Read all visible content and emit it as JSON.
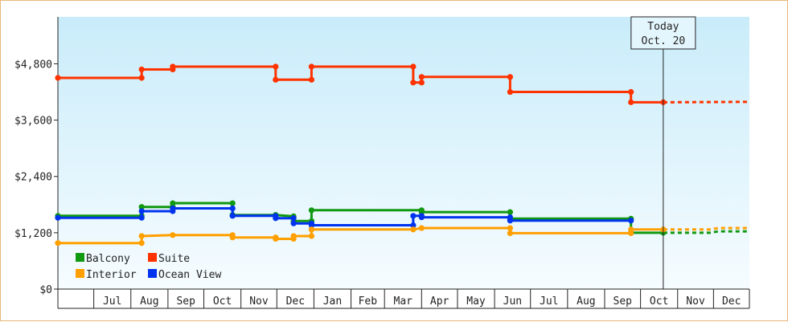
{
  "chart_data": {
    "type": "line",
    "title": "",
    "xlabel": "",
    "ylabel": "",
    "ylim": [
      0,
      5800
    ],
    "y_ticks": [
      {
        "value": 0,
        "label": "$0"
      },
      {
        "value": 1200,
        "label": "$1,200"
      },
      {
        "value": 2400,
        "label": "$2,400"
      },
      {
        "value": 3600,
        "label": "$3,600"
      },
      {
        "value": 4800,
        "label": "$4,800"
      }
    ],
    "x_range": [
      "2013-06-01",
      "2014-12-31"
    ],
    "months": [
      {
        "start": "2013-06-01",
        "end": "2013-07-01",
        "label": ""
      },
      {
        "start": "2013-07-01",
        "end": "2013-08-01",
        "label": "Jul"
      },
      {
        "start": "2013-08-01",
        "end": "2013-09-01",
        "label": "Aug"
      },
      {
        "start": "2013-09-01",
        "end": "2013-10-01",
        "label": "Sep"
      },
      {
        "start": "2013-10-01",
        "end": "2013-11-01",
        "label": "Oct"
      },
      {
        "start": "2013-11-01",
        "end": "2013-12-01",
        "label": "Nov"
      },
      {
        "start": "2013-12-01",
        "end": "2014-01-01",
        "label": "Dec"
      },
      {
        "start": "2014-01-01",
        "end": "2014-02-01",
        "label": "Jan"
      },
      {
        "start": "2014-02-01",
        "end": "2014-03-01",
        "label": "Feb"
      },
      {
        "start": "2014-03-01",
        "end": "2014-04-01",
        "label": "Mar"
      },
      {
        "start": "2014-04-01",
        "end": "2014-05-01",
        "label": "Apr"
      },
      {
        "start": "2014-05-01",
        "end": "2014-06-01",
        "label": "May"
      },
      {
        "start": "2014-06-01",
        "end": "2014-07-01",
        "label": "Jun"
      },
      {
        "start": "2014-07-01",
        "end": "2014-08-01",
        "label": "Jul"
      },
      {
        "start": "2014-08-01",
        "end": "2014-09-01",
        "label": "Aug"
      },
      {
        "start": "2014-09-01",
        "end": "2014-10-01",
        "label": "Sep"
      },
      {
        "start": "2014-10-01",
        "end": "2014-11-01",
        "label": "Oct"
      },
      {
        "start": "2014-11-01",
        "end": "2014-12-01",
        "label": "Nov"
      },
      {
        "start": "2014-12-01",
        "end": "2014-12-31",
        "label": "Dec"
      }
    ],
    "today": {
      "date": "2014-10-20",
      "line1": "Today",
      "line2": "Oct. 20"
    },
    "series": [
      {
        "name": "Suite",
        "color": "#ff3300",
        "points": [
          {
            "date": "2013-06-01",
            "value": 4500
          },
          {
            "date": "2013-08-10",
            "value": 4500
          },
          {
            "date": "2013-08-10",
            "value": 4680
          },
          {
            "date": "2013-09-05",
            "value": 4680
          },
          {
            "date": "2013-09-05",
            "value": 4740
          },
          {
            "date": "2013-11-30",
            "value": 4740
          },
          {
            "date": "2013-11-30",
            "value": 4460
          },
          {
            "date": "2013-12-30",
            "value": 4460
          },
          {
            "date": "2013-12-30",
            "value": 4740
          },
          {
            "date": "2014-03-25",
            "value": 4740
          },
          {
            "date": "2014-03-25",
            "value": 4400
          },
          {
            "date": "2014-04-01",
            "value": 4400
          },
          {
            "date": "2014-04-01",
            "value": 4520
          },
          {
            "date": "2014-06-14",
            "value": 4520
          },
          {
            "date": "2014-06-14",
            "value": 4200
          },
          {
            "date": "2014-09-23",
            "value": 4200
          },
          {
            "date": "2014-09-23",
            "value": 3980
          },
          {
            "date": "2014-10-20",
            "value": 3980
          }
        ],
        "forecast": [
          {
            "date": "2014-10-20",
            "value": 3980
          },
          {
            "date": "2014-12-31",
            "value": 3990
          }
        ]
      },
      {
        "name": "Balcony",
        "color": "#119911",
        "points": [
          {
            "date": "2013-06-01",
            "value": 1560
          },
          {
            "date": "2013-08-10",
            "value": 1560
          },
          {
            "date": "2013-08-10",
            "value": 1750
          },
          {
            "date": "2013-09-05",
            "value": 1750
          },
          {
            "date": "2013-09-05",
            "value": 1830
          },
          {
            "date": "2013-10-25",
            "value": 1830
          },
          {
            "date": "2013-10-25",
            "value": 1580
          },
          {
            "date": "2013-11-30",
            "value": 1580
          },
          {
            "date": "2013-12-15",
            "value": 1550
          },
          {
            "date": "2013-12-15",
            "value": 1450
          },
          {
            "date": "2013-12-30",
            "value": 1450
          },
          {
            "date": "2013-12-30",
            "value": 1680
          },
          {
            "date": "2014-04-01",
            "value": 1680
          },
          {
            "date": "2014-04-01",
            "value": 1640
          },
          {
            "date": "2014-06-14",
            "value": 1640
          },
          {
            "date": "2014-06-14",
            "value": 1500
          },
          {
            "date": "2014-09-23",
            "value": 1500
          },
          {
            "date": "2014-09-23",
            "value": 1200
          },
          {
            "date": "2014-10-20",
            "value": 1200
          }
        ],
        "forecast": [
          {
            "date": "2014-10-20",
            "value": 1200
          },
          {
            "date": "2014-11-28",
            "value": 1200
          },
          {
            "date": "2014-12-05",
            "value": 1230
          },
          {
            "date": "2014-12-31",
            "value": 1230
          }
        ]
      },
      {
        "name": "Ocean View",
        "color": "#0033ee",
        "points": [
          {
            "date": "2013-06-01",
            "value": 1520
          },
          {
            "date": "2013-08-10",
            "value": 1520
          },
          {
            "date": "2013-08-10",
            "value": 1660
          },
          {
            "date": "2013-09-05",
            "value": 1660
          },
          {
            "date": "2013-09-05",
            "value": 1720
          },
          {
            "date": "2013-10-25",
            "value": 1720
          },
          {
            "date": "2013-10-25",
            "value": 1560
          },
          {
            "date": "2013-11-30",
            "value": 1560
          },
          {
            "date": "2013-11-30",
            "value": 1510
          },
          {
            "date": "2013-12-15",
            "value": 1510
          },
          {
            "date": "2013-12-15",
            "value": 1400
          },
          {
            "date": "2013-12-30",
            "value": 1400
          },
          {
            "date": "2013-12-30",
            "value": 1360
          },
          {
            "date": "2014-03-25",
            "value": 1360
          },
          {
            "date": "2014-03-25",
            "value": 1560
          },
          {
            "date": "2014-04-01",
            "value": 1560
          },
          {
            "date": "2014-04-01",
            "value": 1530
          },
          {
            "date": "2014-06-14",
            "value": 1530
          },
          {
            "date": "2014-06-14",
            "value": 1460
          },
          {
            "date": "2014-09-23",
            "value": 1460
          }
        ],
        "forecast": []
      },
      {
        "name": "Interior",
        "color": "#ff9f00",
        "points": [
          {
            "date": "2013-06-01",
            "value": 980
          },
          {
            "date": "2013-08-10",
            "value": 980
          },
          {
            "date": "2013-08-10",
            "value": 1130
          },
          {
            "date": "2013-09-05",
            "value": 1150
          },
          {
            "date": "2013-10-25",
            "value": 1150
          },
          {
            "date": "2013-10-25",
            "value": 1100
          },
          {
            "date": "2013-11-30",
            "value": 1100
          },
          {
            "date": "2013-11-30",
            "value": 1070
          },
          {
            "date": "2013-12-15",
            "value": 1070
          },
          {
            "date": "2013-12-15",
            "value": 1130
          },
          {
            "date": "2013-12-30",
            "value": 1130
          },
          {
            "date": "2013-12-30",
            "value": 1270
          },
          {
            "date": "2014-03-25",
            "value": 1270
          },
          {
            "date": "2014-04-01",
            "value": 1300
          },
          {
            "date": "2014-06-14",
            "value": 1300
          },
          {
            "date": "2014-06-14",
            "value": 1190
          },
          {
            "date": "2014-09-23",
            "value": 1190
          },
          {
            "date": "2014-09-23",
            "value": 1270
          },
          {
            "date": "2014-10-20",
            "value": 1270
          }
        ],
        "forecast": [
          {
            "date": "2014-10-20",
            "value": 1270
          },
          {
            "date": "2014-11-28",
            "value": 1270
          },
          {
            "date": "2014-12-05",
            "value": 1300
          },
          {
            "date": "2014-12-31",
            "value": 1300
          }
        ]
      }
    ],
    "legend": {
      "placement": "bottom-left",
      "entries": [
        {
          "name": "Balcony",
          "color": "#119911"
        },
        {
          "name": "Suite",
          "color": "#ff3300"
        },
        {
          "name": "Interior",
          "color": "#ff9f00"
        },
        {
          "name": "Ocean View",
          "color": "#0033ee"
        }
      ]
    },
    "background": {
      "top": "#c9ecfa",
      "bottom": "#f6fcff"
    },
    "grid": false
  }
}
